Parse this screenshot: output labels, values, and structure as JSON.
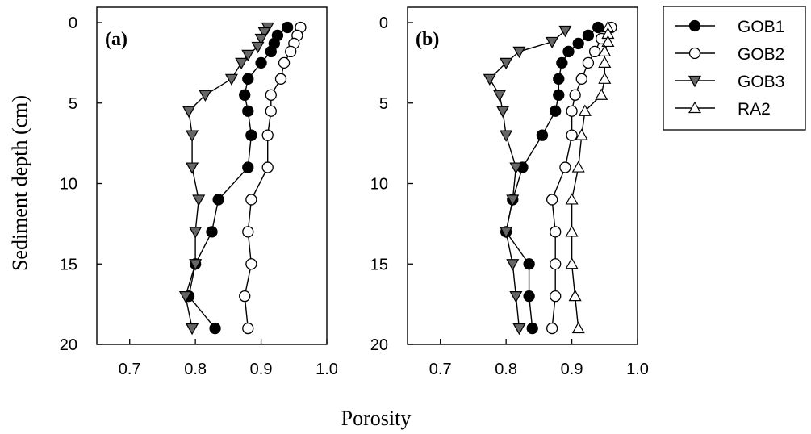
{
  "chart_data": {
    "type": "line",
    "xlabel": "Porosity",
    "ylabel": "Sediment depth (cm)",
    "xlim": [
      0.65,
      1.0
    ],
    "ylim": [
      0,
      20
    ],
    "y_inverted": true,
    "x_ticks": [
      0.7,
      0.8,
      0.9,
      1.0
    ],
    "x_tick_labels": [
      "0.7",
      "0.8",
      "0.9",
      "1.0"
    ],
    "y_ticks": [
      0,
      5,
      10,
      15,
      20
    ],
    "y_tick_labels": [
      "0",
      "5",
      "10",
      "15",
      "20"
    ],
    "legend_position": "right",
    "legend": [
      {
        "name": "GOB1",
        "marker": "circle",
        "fill": "#000000"
      },
      {
        "name": "GOB2",
        "marker": "circle",
        "fill": "#ffffff"
      },
      {
        "name": "GOB3",
        "marker": "triangle-down",
        "fill": "#666666"
      },
      {
        "name": "RA2",
        "marker": "triangle-up",
        "fill": "#ffffff"
      }
    ],
    "panels": [
      {
        "label": "(a)",
        "series": [
          {
            "name": "GOB1",
            "marker": "circle",
            "fill": "#000000",
            "points": [
              [
                0.94,
                0.3
              ],
              [
                0.925,
                0.8
              ],
              [
                0.92,
                1.3
              ],
              [
                0.915,
                1.8
              ],
              [
                0.9,
                2.5
              ],
              [
                0.88,
                3.5
              ],
              [
                0.875,
                4.5
              ],
              [
                0.88,
                5.5
              ],
              [
                0.885,
                7
              ],
              [
                0.88,
                9
              ],
              [
                0.835,
                11
              ],
              [
                0.825,
                13
              ],
              [
                0.8,
                15
              ],
              [
                0.79,
                17
              ],
              [
                0.83,
                19
              ]
            ]
          },
          {
            "name": "GOB2",
            "marker": "circle",
            "fill": "#ffffff",
            "points": [
              [
                0.96,
                0.3
              ],
              [
                0.955,
                0.8
              ],
              [
                0.95,
                1.3
              ],
              [
                0.945,
                1.8
              ],
              [
                0.935,
                2.5
              ],
              [
                0.93,
                3.5
              ],
              [
                0.915,
                4.5
              ],
              [
                0.915,
                5.5
              ],
              [
                0.91,
                7
              ],
              [
                0.91,
                9
              ],
              [
                0.885,
                11
              ],
              [
                0.88,
                13
              ],
              [
                0.885,
                15
              ],
              [
                0.875,
                17
              ],
              [
                0.88,
                19
              ]
            ]
          },
          {
            "name": "GOB3",
            "marker": "triangle-down",
            "fill": "#666666",
            "points": [
              [
                0.91,
                0.3
              ],
              [
                0.905,
                0.6
              ],
              [
                0.9,
                1.0
              ],
              [
                0.895,
                1.5
              ],
              [
                0.88,
                2.0
              ],
              [
                0.87,
                2.5
              ],
              [
                0.855,
                3.5
              ],
              [
                0.815,
                4.5
              ],
              [
                0.79,
                5.5
              ],
              [
                0.795,
                7
              ],
              [
                0.795,
                9
              ],
              [
                0.805,
                11
              ],
              [
                0.8,
                13
              ],
              [
                0.8,
                15
              ],
              [
                0.785,
                17
              ],
              [
                0.795,
                19
              ]
            ]
          }
        ]
      },
      {
        "label": "(b)",
        "series": [
          {
            "name": "GOB1",
            "marker": "circle",
            "fill": "#000000",
            "points": [
              [
                0.94,
                0.3
              ],
              [
                0.925,
                0.8
              ],
              [
                0.91,
                1.3
              ],
              [
                0.895,
                1.8
              ],
              [
                0.885,
                2.5
              ],
              [
                0.88,
                3.5
              ],
              [
                0.88,
                4.5
              ],
              [
                0.875,
                5.5
              ],
              [
                0.855,
                7
              ],
              [
                0.825,
                9
              ],
              [
                0.81,
                11
              ],
              [
                0.8,
                13
              ],
              [
                0.835,
                15
              ],
              [
                0.835,
                17
              ],
              [
                0.84,
                19
              ]
            ]
          },
          {
            "name": "GOB2",
            "marker": "circle",
            "fill": "#ffffff",
            "points": [
              [
                0.96,
                0.3
              ],
              [
                0.945,
                1.0
              ],
              [
                0.935,
                1.8
              ],
              [
                0.925,
                2.5
              ],
              [
                0.915,
                3.5
              ],
              [
                0.905,
                4.5
              ],
              [
                0.9,
                5.5
              ],
              [
                0.9,
                7
              ],
              [
                0.89,
                9
              ],
              [
                0.87,
                11
              ],
              [
                0.875,
                13
              ],
              [
                0.875,
                15
              ],
              [
                0.875,
                17
              ],
              [
                0.87,
                19
              ]
            ]
          },
          {
            "name": "GOB3",
            "marker": "triangle-down",
            "fill": "#666666",
            "points": [
              [
                0.89,
                0.5
              ],
              [
                0.87,
                1.2
              ],
              [
                0.82,
                1.8
              ],
              [
                0.8,
                2.5
              ],
              [
                0.775,
                3.5
              ],
              [
                0.79,
                4.5
              ],
              [
                0.795,
                5.5
              ],
              [
                0.8,
                7
              ],
              [
                0.815,
                9
              ],
              [
                0.81,
                11
              ],
              [
                0.8,
                13
              ],
              [
                0.81,
                15
              ],
              [
                0.815,
                17
              ],
              [
                0.82,
                19
              ]
            ]
          },
          {
            "name": "RA2",
            "marker": "triangle-up",
            "fill": "#ffffff",
            "points": [
              [
                0.955,
                0.3
              ],
              [
                0.955,
                0.7
              ],
              [
                0.955,
                1.2
              ],
              [
                0.95,
                1.8
              ],
              [
                0.95,
                2.5
              ],
              [
                0.95,
                3.5
              ],
              [
                0.945,
                4.5
              ],
              [
                0.92,
                5.5
              ],
              [
                0.915,
                7
              ],
              [
                0.91,
                9
              ],
              [
                0.9,
                11
              ],
              [
                0.9,
                13
              ],
              [
                0.9,
                15
              ],
              [
                0.905,
                17
              ],
              [
                0.91,
                19
              ]
            ]
          }
        ]
      }
    ]
  }
}
